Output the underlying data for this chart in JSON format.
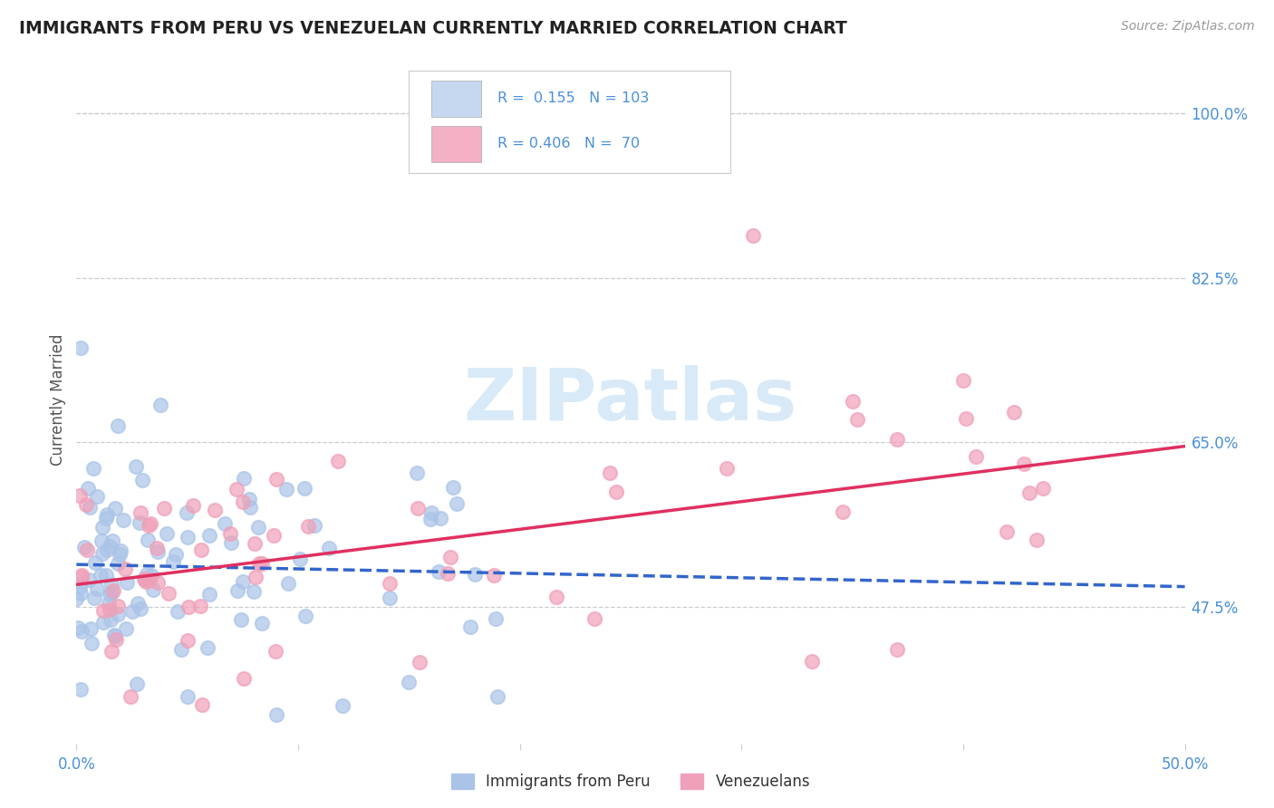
{
  "title": "IMMIGRANTS FROM PERU VS VENEZUELAN CURRENTLY MARRIED CORRELATION CHART",
  "source_text": "Source: ZipAtlas.com",
  "ylabel": "Currently Married",
  "watermark": "ZIPatlas",
  "blue_R": 0.155,
  "blue_N": 103,
  "pink_R": 0.406,
  "pink_N": 70,
  "xlim": [
    0.0,
    0.5
  ],
  "ylim": [
    0.33,
    1.06
  ],
  "right_yticks": [
    0.475,
    0.65,
    0.825,
    1.0
  ],
  "right_yticklabels": [
    "47.5%",
    "65.0%",
    "82.5%",
    "100.0%"
  ],
  "blue_color": "#aac4e8",
  "pink_color": "#f0a0b8",
  "blue_line_color": "#3366cc",
  "pink_line_color": "#e03060",
  "background_color": "#ffffff",
  "grid_color": "#cccccc",
  "title_color": "#222222",
  "tick_color": "#4a90d9",
  "legend_box_color_blue": "#c5d8f0",
  "legend_box_color_pink": "#f4b0c5",
  "legend_text_color": "#4a90d9",
  "watermark_color": "#d8eaf8"
}
